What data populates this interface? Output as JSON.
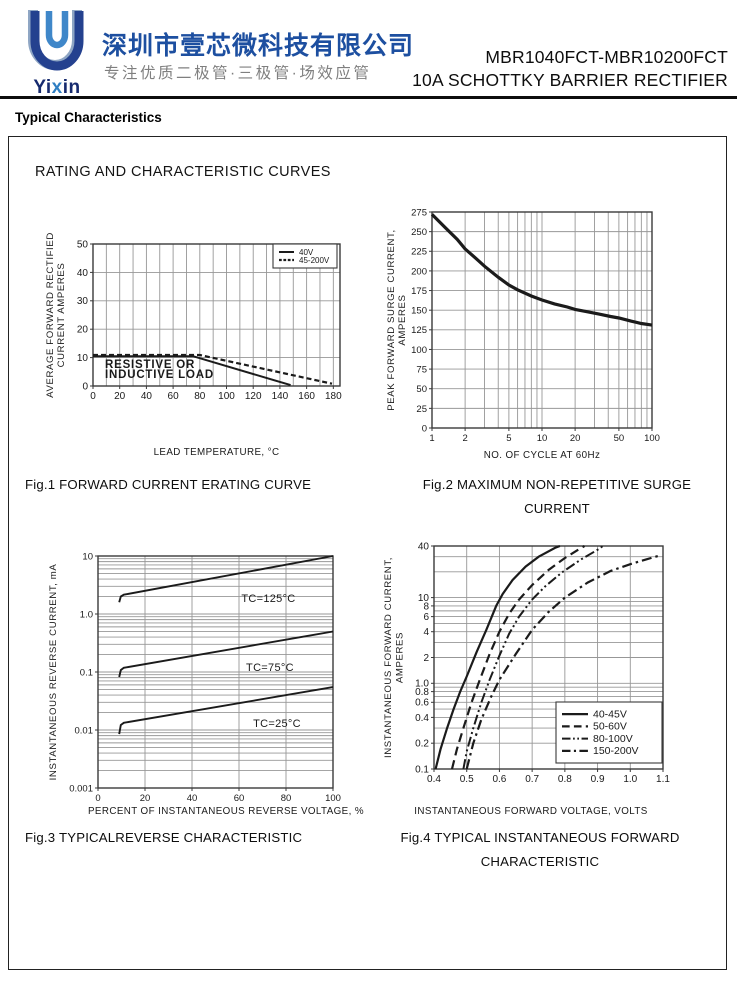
{
  "header": {
    "logo": {
      "pre": "Yi",
      "mid": "x",
      "post": "in"
    },
    "company_name": "深圳市壹芯微科技有限公司",
    "tagline": "专注优质二极管·三极管·场效应管",
    "part_range": "MBR1040FCT-MBR10200FCT",
    "part_desc": "10A SCHOTTKY BARRIER RECTIFIER"
  },
  "section_title": "Typical Characteristics",
  "box_title": "RATING AND CHARACTERISTIC CURVES",
  "colors": {
    "brand_blue": "#1d4fa0",
    "logo_light_blue": "#3f87c9",
    "logo_navy": "#24418f",
    "gray_text": "#7f7f7f",
    "grid": "#979797",
    "axis": "#3a3a3a",
    "line": "#1b1b1b"
  },
  "chart_data": [
    {
      "id": "fig1",
      "type": "line",
      "caption": [
        "Fig.1 FORWARD CURRENT ERATING CURVE"
      ],
      "xlabel": "LEAD TEMPERATURE, °C",
      "ylabel": [
        "AVERAGE FORWARD RECTIFIED",
        "CURRENT AMPERES"
      ],
      "xscale": "linear",
      "xlim": [
        0,
        185
      ],
      "yscale": "linear",
      "ylim": [
        0,
        50
      ],
      "xgrid": [
        10,
        20,
        30,
        40,
        50,
        60,
        70,
        80,
        90,
        100,
        110,
        120,
        130,
        140,
        150,
        160,
        170,
        180
      ],
      "ygrid": [
        10,
        20,
        30,
        40
      ],
      "xticks": [
        {
          "v": 0,
          "t": "0"
        },
        {
          "v": 20,
          "t": "20"
        },
        {
          "v": 40,
          "t": "40"
        },
        {
          "v": 60,
          "t": "60"
        },
        {
          "v": 80,
          "t": "80"
        },
        {
          "v": 100,
          "t": "100"
        },
        {
          "v": 120,
          "t": "120"
        },
        {
          "v": 140,
          "t": "140"
        },
        {
          "v": 160,
          "t": "160"
        },
        {
          "v": 180,
          "t": "180"
        }
      ],
      "yticks": [
        {
          "v": 0,
          "t": "0"
        },
        {
          "v": 10,
          "t": "10"
        },
        {
          "v": 20,
          "t": "20"
        },
        {
          "v": 30,
          "t": "30"
        },
        {
          "v": 40,
          "t": "40"
        },
        {
          "v": 50,
          "t": "50"
        }
      ],
      "series": [
        {
          "name": "40V",
          "dash": null,
          "width": 2,
          "points": [
            [
              0,
              10.5
            ],
            [
              75,
              10.5
            ],
            [
              148,
              0.3
            ]
          ]
        },
        {
          "name": "45-200V",
          "dash": [
            5,
            3
          ],
          "width": 2.2,
          "points": [
            [
              0,
              10.9
            ],
            [
              80,
              10.9
            ],
            [
              179,
              0.8
            ]
          ]
        }
      ],
      "annotations": [
        {
          "x": 9,
          "y": 6.3,
          "text": "RESISTIVE OR"
        },
        {
          "x": 9,
          "y": 2.9,
          "text": "INDUCTIVE LOAD"
        }
      ]
    },
    {
      "id": "fig2",
      "type": "line",
      "caption": [
        "Fig.2 MAXIMUM NON-REPETITIVE SURGE",
        "CURRENT"
      ],
      "xlabel": "NO. OF CYCLE AT 60Hz",
      "ylabel": [
        "PEAK FORWARD SURGE CURRENT,",
        "AMPERES"
      ],
      "xscale": "log",
      "xlim": [
        1,
        100
      ],
      "yscale": "linear",
      "ylim": [
        0,
        275
      ],
      "xgrid": [
        2,
        3,
        4,
        5,
        6,
        7,
        8,
        9,
        10,
        20,
        30,
        40,
        50,
        60,
        70,
        80,
        90
      ],
      "ygrid": [
        25,
        50,
        75,
        100,
        125,
        150,
        175,
        200,
        225,
        250
      ],
      "xticks": [
        {
          "v": 1,
          "t": "1"
        },
        {
          "v": 2,
          "t": "2"
        },
        {
          "v": 5,
          "t": "5"
        },
        {
          "v": 10,
          "t": "10"
        },
        {
          "v": 20,
          "t": "20"
        },
        {
          "v": 50,
          "t": "50"
        },
        {
          "v": 100,
          "t": "100"
        }
      ],
      "yticks": [
        {
          "v": 0,
          "t": "0"
        },
        {
          "v": 25,
          "t": "25"
        },
        {
          "v": 50,
          "t": "50"
        },
        {
          "v": 75,
          "t": "75"
        },
        {
          "v": 100,
          "t": "100"
        },
        {
          "v": 125,
          "t": "125"
        },
        {
          "v": 150,
          "t": "150"
        },
        {
          "v": 175,
          "t": "175"
        },
        {
          "v": 200,
          "t": "200"
        },
        {
          "v": 225,
          "t": "225"
        },
        {
          "v": 250,
          "t": "250"
        },
        {
          "v": 275,
          "t": "275"
        }
      ],
      "series": [
        {
          "name": null,
          "dash": null,
          "width": 3.2,
          "points": [
            [
              1,
              272
            ],
            [
              1.3,
              256
            ],
            [
              1.7,
              240
            ],
            [
              2,
              228
            ],
            [
              2.5,
              216
            ],
            [
              3,
              206
            ],
            [
              4,
              192
            ],
            [
              5,
              182
            ],
            [
              6,
              176
            ],
            [
              8,
              168
            ],
            [
              10,
              163
            ],
            [
              13,
              158
            ],
            [
              17,
              154
            ],
            [
              20,
              151
            ],
            [
              26,
              148
            ],
            [
              33,
              145
            ],
            [
              42,
              142
            ],
            [
              50,
              140
            ],
            [
              65,
              136
            ],
            [
              80,
              133
            ],
            [
              100,
              131
            ]
          ]
        }
      ],
      "annotations": []
    },
    {
      "id": "fig3",
      "type": "line",
      "caption": [
        "Fig.3 TYPICALREVERSE CHARACTERISTIC"
      ],
      "xlabel": "PERCENT OF INSTANTANEOUS REVERSE VOLTAGE, %",
      "ylabel": [
        "INSTANTANEOUS REVERSE CURRENT, mA"
      ],
      "xscale": "linear",
      "xlim": [
        0,
        100
      ],
      "yscale": "log",
      "ylim": [
        0.001,
        10
      ],
      "xgrid": [
        20,
        40,
        60,
        80
      ],
      "ygrid": [
        0.002,
        0.003,
        0.004,
        0.005,
        0.006,
        0.007,
        0.008,
        0.009,
        0.01,
        0.02,
        0.03,
        0.04,
        0.05,
        0.06,
        0.07,
        0.08,
        0.09,
        0.1,
        0.2,
        0.3,
        0.4,
        0.5,
        0.6,
        0.7,
        0.8,
        0.9,
        1,
        2,
        3,
        4,
        5,
        6,
        7,
        8,
        9
      ],
      "xticks": [
        {
          "v": 0,
          "t": "0"
        },
        {
          "v": 20,
          "t": "20"
        },
        {
          "v": 40,
          "t": "40"
        },
        {
          "v": 60,
          "t": "60"
        },
        {
          "v": 80,
          "t": "80"
        },
        {
          "v": 100,
          "t": "100"
        }
      ],
      "yticks": [
        {
          "v": 10,
          "t": "10"
        },
        {
          "v": 1,
          "t": "1.0"
        },
        {
          "v": 0.1,
          "t": "0.1"
        },
        {
          "v": 0.01,
          "t": "0.01"
        },
        {
          "v": 0.001,
          "t": "0.001"
        }
      ],
      "series": [
        {
          "name": null,
          "dash": null,
          "width": 1.9,
          "points": [
            [
              9,
              1.6
            ],
            [
              9.7,
              2.0
            ],
            [
              11,
              2.15
            ],
            [
              100,
              10
            ]
          ]
        },
        {
          "name": null,
          "dash": null,
          "width": 1.9,
          "points": [
            [
              9,
              0.082
            ],
            [
              9.7,
              0.108
            ],
            [
              11,
              0.118
            ],
            [
              100,
              0.5
            ]
          ]
        },
        {
          "name": null,
          "dash": null,
          "width": 1.9,
          "points": [
            [
              9,
              0.0085
            ],
            [
              9.7,
              0.0122
            ],
            [
              11,
              0.0133
            ],
            [
              100,
              0.055
            ]
          ]
        }
      ],
      "annotations": [
        {
          "x": 61,
          "y": 1.62,
          "text": "TC=125°C"
        },
        {
          "x": 63,
          "y": 0.104,
          "text": "TC=75°C"
        },
        {
          "x": 66,
          "y": 0.0112,
          "text": "TC=25°C"
        }
      ]
    },
    {
      "id": "fig4",
      "type": "line",
      "caption": [
        "Fig.4 TYPICAL INSTANTANEOUS FORWARD",
        "CHARACTERISTIC"
      ],
      "xlabel": "INSTANTANEOUS FORWARD VOLTAGE, VOLTS",
      "ylabel": [
        "INSTANTANEOUS FORWARD CURRENT,",
        "AMPERES"
      ],
      "xscale": "linear",
      "xlim": [
        0.4,
        1.1
      ],
      "yscale": "log",
      "ylim": [
        0.1,
        40
      ],
      "xgrid": [
        0.5,
        0.6,
        0.7,
        0.8,
        0.9,
        1.0
      ],
      "ygrid": [
        0.2,
        0.3,
        0.4,
        0.5,
        0.6,
        0.7,
        0.8,
        0.9,
        1,
        2,
        3,
        4,
        5,
        6,
        7,
        8,
        9,
        10,
        20,
        30
      ],
      "xticks": [
        {
          "v": 0.4,
          "t": "0.4"
        },
        {
          "v": 0.5,
          "t": "0.5"
        },
        {
          "v": 0.6,
          "t": "0.6"
        },
        {
          "v": 0.7,
          "t": "0.7"
        },
        {
          "v": 0.8,
          "t": "0.8"
        },
        {
          "v": 0.9,
          "t": "0.9"
        },
        {
          "v": 1.0,
          "t": "1.0"
        },
        {
          "v": 1.1,
          "t": "1.1"
        }
      ],
      "yticks": [
        {
          "v": 40,
          "t": "40"
        },
        {
          "v": 10,
          "t": "10"
        },
        {
          "v": 8,
          "t": "8"
        },
        {
          "v": 6,
          "t": "6"
        },
        {
          "v": 4,
          "t": "4"
        },
        {
          "v": 2,
          "t": "2"
        },
        {
          "v": 1,
          "t": "1.0"
        },
        {
          "v": 0.8,
          "t": "0.8"
        },
        {
          "v": 0.6,
          "t": "0.6"
        },
        {
          "v": 0.4,
          "t": "0.4"
        },
        {
          "v": 0.2,
          "t": "0.2"
        },
        {
          "v": 0.1,
          "t": "0.1"
        }
      ],
      "series": [
        {
          "name": "40-45V",
          "dash": null,
          "width": 2.2,
          "points": [
            [
              0.405,
              0.1
            ],
            [
              0.42,
              0.17
            ],
            [
              0.44,
              0.3
            ],
            [
              0.46,
              0.5
            ],
            [
              0.48,
              0.8
            ],
            [
              0.5,
              1.2
            ],
            [
              0.53,
              2.3
            ],
            [
              0.56,
              4.2
            ],
            [
              0.59,
              8
            ],
            [
              0.61,
              11
            ],
            [
              0.64,
              16
            ],
            [
              0.68,
              23
            ],
            [
              0.72,
              30
            ],
            [
              0.77,
              38
            ],
            [
              0.785,
              40
            ]
          ]
        },
        {
          "name": "50-60V",
          "dash": [
            9,
            5
          ],
          "width": 2.2,
          "points": [
            [
              0.455,
              0.1
            ],
            [
              0.47,
              0.17
            ],
            [
              0.49,
              0.3
            ],
            [
              0.515,
              0.6
            ],
            [
              0.54,
              1.1
            ],
            [
              0.57,
              2.2
            ],
            [
              0.6,
              4
            ],
            [
              0.63,
              6.5
            ],
            [
              0.66,
              9.5
            ],
            [
              0.7,
              14
            ],
            [
              0.75,
              21
            ],
            [
              0.8,
              29
            ],
            [
              0.85,
              38
            ],
            [
              0.86,
              40
            ]
          ]
        },
        {
          "name": "80-100V",
          "dash": [
            10,
            3,
            2,
            3,
            2,
            3
          ],
          "width": 2,
          "points": [
            [
              0.49,
              0.1
            ],
            [
              0.5,
              0.16
            ],
            [
              0.52,
              0.3
            ],
            [
              0.545,
              0.6
            ],
            [
              0.57,
              1.1
            ],
            [
              0.6,
              2.1
            ],
            [
              0.63,
              3.8
            ],
            [
              0.66,
              6
            ],
            [
              0.7,
              9.5
            ],
            [
              0.74,
              13.5
            ],
            [
              0.79,
              19.5
            ],
            [
              0.85,
              28
            ],
            [
              0.91,
              38
            ],
            [
              0.915,
              40
            ]
          ]
        },
        {
          "name": "150-200V",
          "dash": [
            10,
            4,
            2.5,
            4
          ],
          "width": 2.2,
          "points": [
            [
              0.5,
              0.1
            ],
            [
              0.52,
              0.2
            ],
            [
              0.545,
              0.38
            ],
            [
              0.575,
              0.7
            ],
            [
              0.6,
              1.1
            ],
            [
              0.65,
              2.2
            ],
            [
              0.7,
              4.2
            ],
            [
              0.75,
              6.8
            ],
            [
              0.8,
              10
            ],
            [
              0.87,
              15
            ],
            [
              0.94,
              20.5
            ],
            [
              1.0,
              24.5
            ],
            [
              1.05,
              28
            ],
            [
              1.09,
              31
            ]
          ]
        }
      ],
      "annotations": []
    }
  ]
}
